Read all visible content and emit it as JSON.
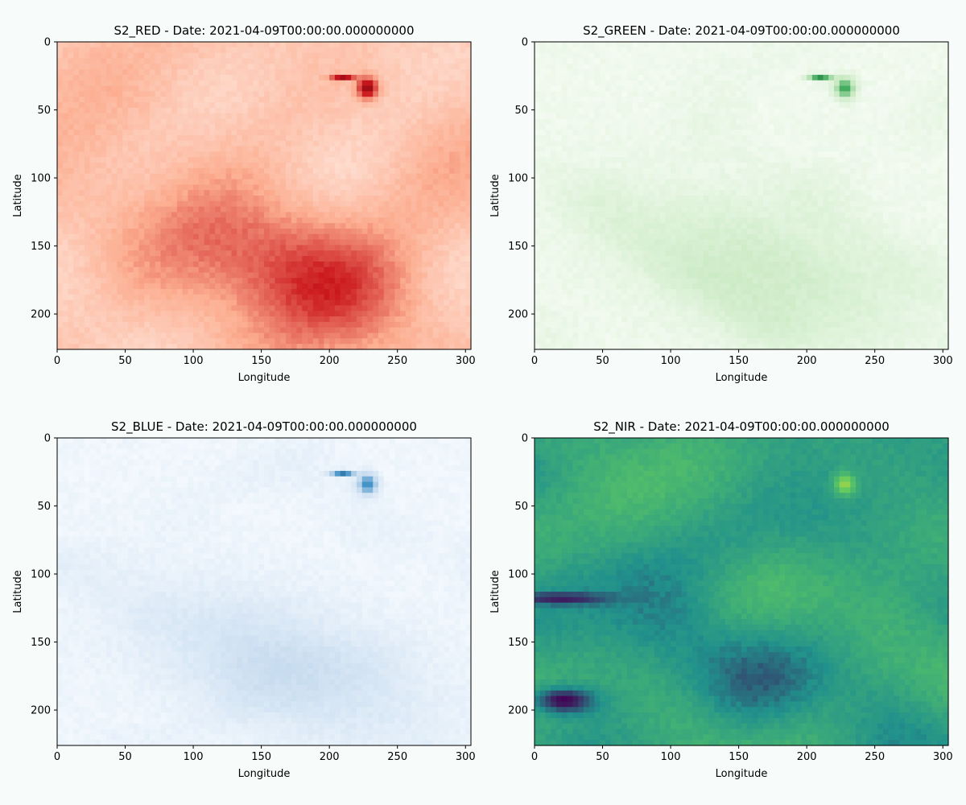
{
  "figure": {
    "background": "#f7fbfa"
  },
  "chart_data": [
    {
      "type": "heatmap",
      "title": "S2_RED - Date: 2021-04-09T00:00:00.000000000",
      "xlabel": "Longitude",
      "ylabel": "Latitude",
      "xlim": [
        0,
        304
      ],
      "ylim": [
        226,
        0
      ],
      "xticks": [
        0,
        50,
        100,
        150,
        200,
        250,
        300
      ],
      "yticks": [
        0,
        50,
        100,
        150,
        200
      ],
      "colormap": "Reds",
      "colors": {
        "low": "#fff5f0",
        "mid": "#fcae91",
        "high": "#cb181d",
        "max": "#67000d"
      },
      "features": [
        {
          "name": "bright-spot",
          "x": 228,
          "y": 34,
          "level": 0.85
        },
        {
          "name": "linear-streak",
          "x": 210,
          "y": 26,
          "level": 0.8
        },
        {
          "name": "channel-band",
          "x_range": [
            120,
            240
          ],
          "y_range": [
            110,
            226
          ],
          "level": 0.45
        }
      ]
    },
    {
      "type": "heatmap",
      "title": "S2_GREEN - Date: 2021-04-09T00:00:00.000000000",
      "xlabel": "Longitude",
      "ylabel": "Latitude",
      "xlim": [
        0,
        304
      ],
      "ylim": [
        226,
        0
      ],
      "xticks": [
        0,
        50,
        100,
        150,
        200,
        250,
        300
      ],
      "yticks": [
        0,
        50,
        100,
        150,
        200
      ],
      "colormap": "Greens",
      "colors": {
        "low": "#f7fcf5",
        "mid": "#c7e9c0",
        "high": "#41ab5d",
        "max": "#00441b"
      },
      "features": [
        {
          "name": "bright-spot",
          "x": 228,
          "y": 34,
          "level": 0.7
        },
        {
          "name": "linear-streak",
          "x": 210,
          "y": 26,
          "level": 0.75
        }
      ]
    },
    {
      "type": "heatmap",
      "title": "S2_BLUE - Date: 2021-04-09T00:00:00.000000000",
      "xlabel": "Longitude",
      "ylabel": "Latitude",
      "xlim": [
        0,
        304
      ],
      "ylim": [
        226,
        0
      ],
      "xticks": [
        0,
        50,
        100,
        150,
        200,
        250,
        300
      ],
      "yticks": [
        0,
        50,
        100,
        150,
        200
      ],
      "colormap": "Blues",
      "colors": {
        "low": "#f7fbff",
        "mid": "#c6dbef",
        "high": "#4292c6",
        "max": "#08306b"
      },
      "features": [
        {
          "name": "bright-spot",
          "x": 228,
          "y": 34,
          "level": 0.7
        },
        {
          "name": "linear-streak",
          "x": 210,
          "y": 26,
          "level": 0.75
        }
      ]
    },
    {
      "type": "heatmap",
      "title": "S2_NIR - Date: 2021-04-09T00:00:00.000000000",
      "xlabel": "Longitude",
      "ylabel": "Latitude",
      "xlim": [
        0,
        304
      ],
      "ylim": [
        226,
        0
      ],
      "xticks": [
        0,
        50,
        100,
        150,
        200,
        250,
        300
      ],
      "yticks": [
        0,
        50,
        100,
        150,
        200
      ],
      "colormap": "viridis",
      "colors": {
        "low": "#440154",
        "mid": "#21918c",
        "high": "#5ec962",
        "max": "#fde725"
      },
      "features": [
        {
          "name": "water-body",
          "x": 22,
          "y": 193,
          "level": 0.0
        },
        {
          "name": "water-channel",
          "x": 20,
          "y": 118,
          "level": 0.05
        },
        {
          "name": "bright-spot",
          "x": 228,
          "y": 34,
          "level": 0.8
        }
      ]
    }
  ]
}
